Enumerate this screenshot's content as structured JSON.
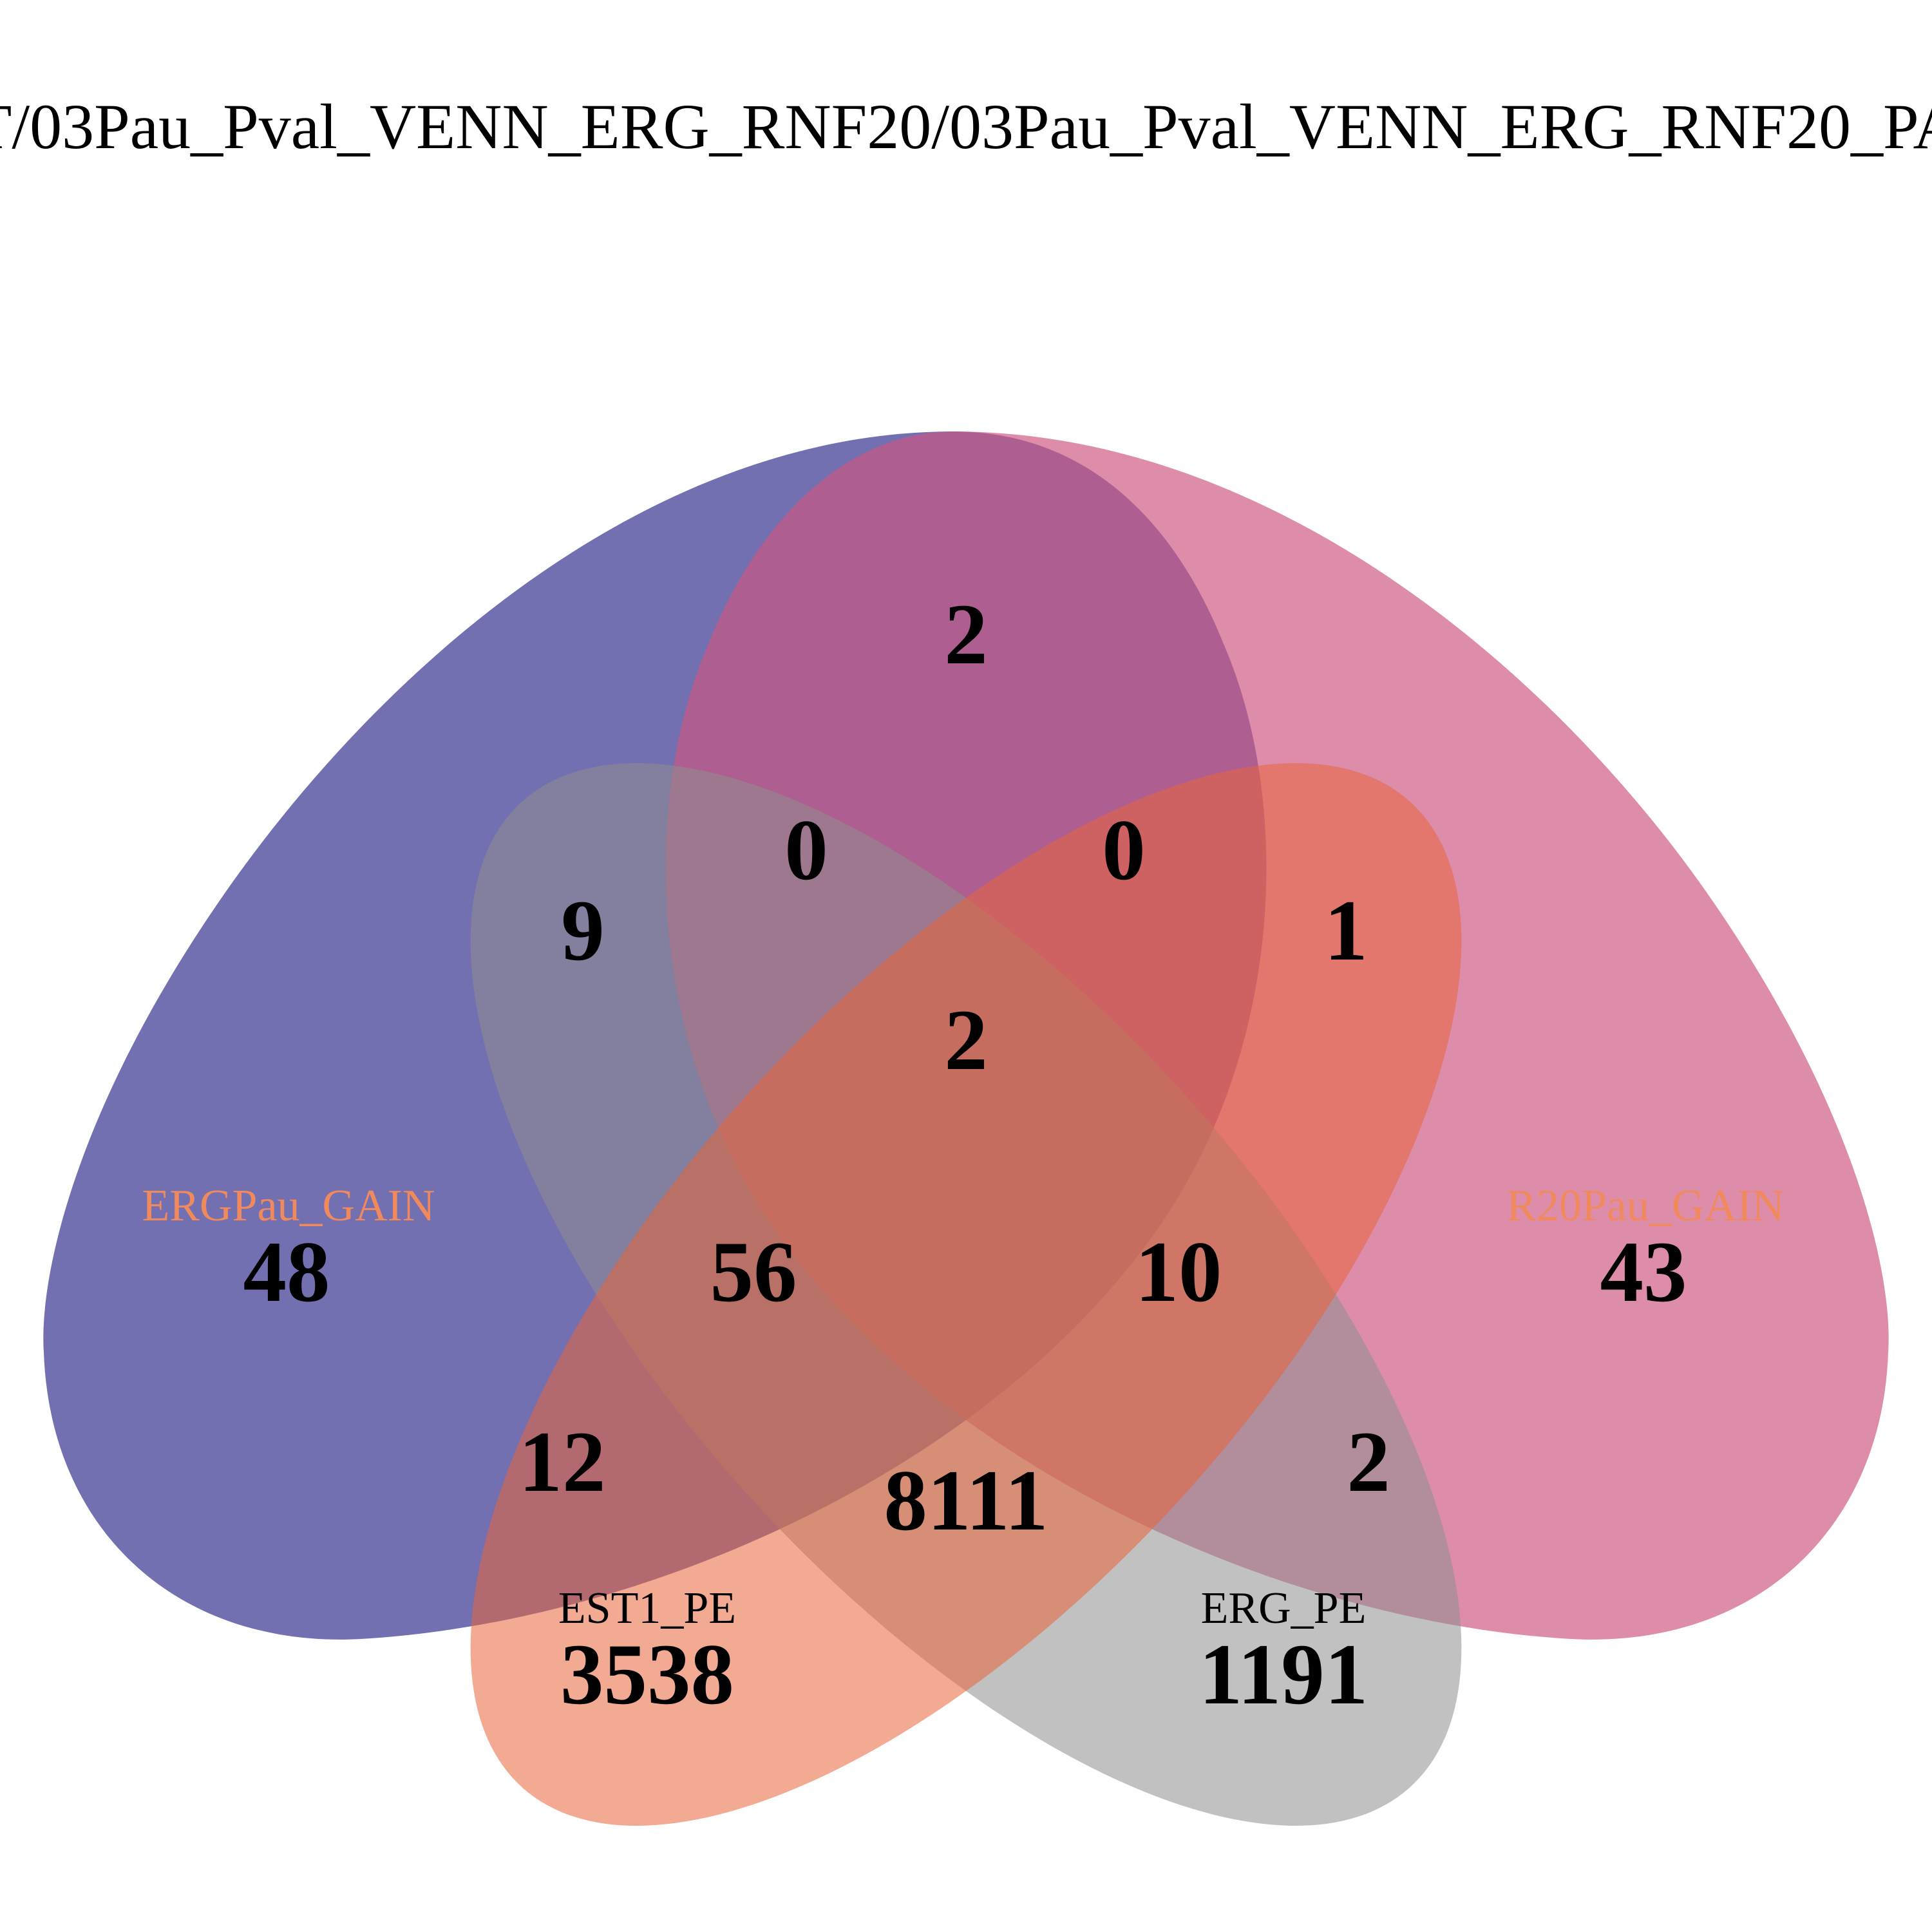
{
  "title": "T/03Pau_Pval_VENN_ERG_RNF20/03Pau_Pval_VENN_ERG_RNF20_PA",
  "sets": [
    {
      "id": "A",
      "name": "ERGPau_GAIN",
      "fill": "#2e2a8c",
      "label_color": "#f08a5d"
    },
    {
      "id": "B",
      "name": "R20Pau_GAIN",
      "fill": "#cc5580",
      "label_color": "#f08a5d"
    },
    {
      "id": "C",
      "name": "EST1_PE",
      "fill": "#8e8e8e",
      "label_color": "#000000"
    },
    {
      "id": "D",
      "name": "ERG_PE",
      "fill": "#e8653a",
      "label_color": "#000000"
    }
  ],
  "regions": [
    {
      "id": "A_only",
      "sets": [
        "ERGPau_GAIN"
      ],
      "count": "48"
    },
    {
      "id": "B_only",
      "sets": [
        "R20Pau_GAIN"
      ],
      "count": "43"
    },
    {
      "id": "C_only",
      "sets": [
        "EST1_PE"
      ],
      "count": "3538"
    },
    {
      "id": "D_only",
      "sets": [
        "ERG_PE"
      ],
      "count": "1191"
    },
    {
      "id": "AB",
      "sets": [
        "ERGPau_GAIN",
        "R20Pau_GAIN"
      ],
      "count": "2"
    },
    {
      "id": "AC",
      "sets": [
        "ERGPau_GAIN",
        "EST1_PE"
      ],
      "count": "9"
    },
    {
      "id": "ABC",
      "sets": [
        "ERGPau_GAIN",
        "R20Pau_GAIN",
        "EST1_PE"
      ],
      "count": "0"
    },
    {
      "id": "ABD",
      "sets": [
        "ERGPau_GAIN",
        "R20Pau_GAIN",
        "ERG_PE"
      ],
      "count": "0"
    },
    {
      "id": "BD",
      "sets": [
        "R20Pau_GAIN",
        "ERG_PE"
      ],
      "count": "1"
    },
    {
      "id": "ABCD",
      "sets": [
        "ERGPau_GAIN",
        "R20Pau_GAIN",
        "EST1_PE",
        "ERG_PE"
      ],
      "count": "2"
    },
    {
      "id": "ACD",
      "sets": [
        "ERGPau_GAIN",
        "EST1_PE",
        "ERG_PE"
      ],
      "count": "56"
    },
    {
      "id": "BCD",
      "sets": [
        "R20Pau_GAIN",
        "EST1_PE",
        "ERG_PE"
      ],
      "count": "10"
    },
    {
      "id": "AD",
      "sets": [
        "ERGPau_GAIN",
        "ERG_PE"
      ],
      "count": "12"
    },
    {
      "id": "BC",
      "sets": [
        "R20Pau_GAIN",
        "EST1_PE"
      ],
      "count": "2"
    },
    {
      "id": "CD",
      "sets": [
        "EST1_PE",
        "ERG_PE"
      ],
      "count": "8111"
    }
  ]
}
